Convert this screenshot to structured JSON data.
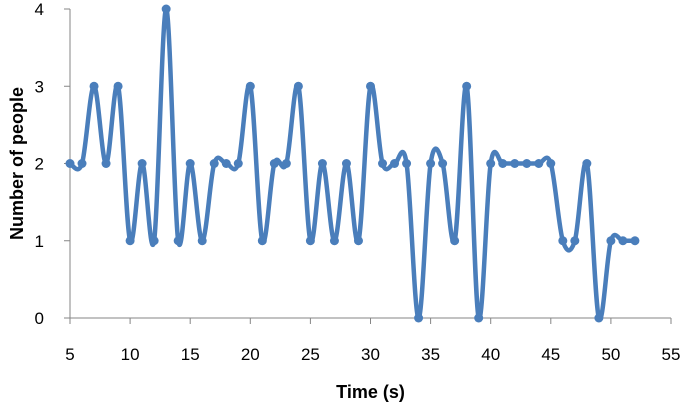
{
  "chart_data": {
    "type": "line",
    "title": "",
    "xlabel": "Time (s)",
    "ylabel": "Number of people",
    "xlim": [
      5,
      55
    ],
    "ylim": [
      0,
      4
    ],
    "xticks": [
      5,
      10,
      15,
      20,
      25,
      30,
      35,
      40,
      45,
      50,
      55
    ],
    "yticks": [
      0,
      1,
      2,
      3,
      4
    ],
    "grid": false,
    "legend": "none",
    "color": "#4a7ebb",
    "series": [
      {
        "x": [
          5,
          6,
          7,
          8,
          9,
          10,
          11,
          12,
          13,
          14,
          15,
          16,
          17,
          18,
          19,
          20,
          21,
          22,
          23,
          24,
          25,
          26,
          27,
          28,
          29,
          30,
          31,
          32,
          33,
          34,
          35,
          36,
          37,
          38,
          39,
          40,
          41,
          42,
          43,
          44,
          45,
          46,
          47,
          48,
          49,
          50,
          51,
          52
        ],
        "y": [
          2,
          2,
          3,
          2,
          3,
          1,
          2,
          1,
          4,
          1,
          2,
          1,
          2,
          2,
          2,
          3,
          1,
          2,
          2,
          3,
          1,
          2,
          1,
          2,
          1,
          3,
          2,
          2,
          2,
          0,
          2,
          2,
          1,
          3,
          0,
          2,
          2,
          2,
          2,
          2,
          2,
          1,
          1,
          2,
          0,
          1,
          1,
          1
        ]
      }
    ]
  }
}
